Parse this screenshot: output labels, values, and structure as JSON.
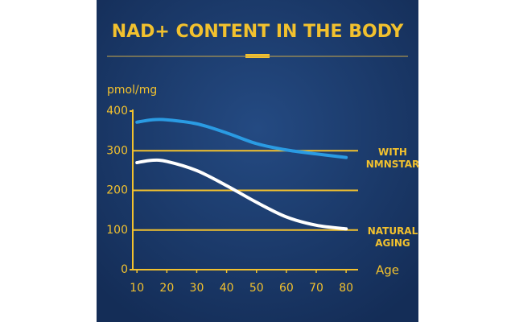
{
  "chart_data": {
    "type": "line",
    "title": "NAD+ CONTENT IN THE BODY",
    "y_label": "pmol/mg",
    "x_label": "Age",
    "x": [
      10,
      15,
      20,
      30,
      40,
      50,
      60,
      70,
      80
    ],
    "series": [
      {
        "name": "WITH NMNSTAR",
        "color": "#2a9be3",
        "values": [
          372,
          378,
          378,
          368,
          345,
          318,
          302,
          292,
          283
        ]
      },
      {
        "name": "NATURAL AGING",
        "color": "#ffffff",
        "values": [
          270,
          276,
          273,
          250,
          212,
          170,
          133,
          112,
          103
        ]
      }
    ],
    "xlim": [
      8.6,
      84
    ],
    "xticks": [
      10,
      20,
      30,
      40,
      50,
      60,
      70,
      80
    ],
    "ylim": [
      0,
      400
    ],
    "yticks": [
      0,
      100,
      200,
      300,
      400
    ],
    "grid": true
  }
}
